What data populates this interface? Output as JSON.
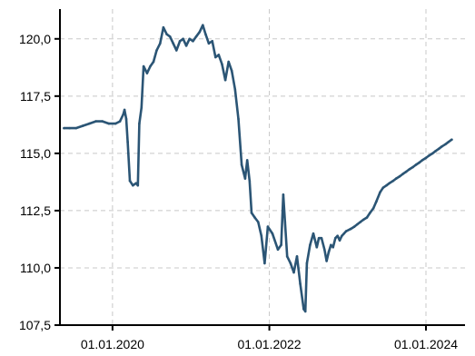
{
  "chart_data": {
    "type": "line",
    "title": "",
    "xlabel": "",
    "ylabel": "",
    "xlim": [
      "2019-05-01",
      "2024-07-01"
    ],
    "ylim": [
      107.5,
      121.3
    ],
    "y_ticks": [
      107.5,
      110.0,
      112.5,
      115.0,
      117.5,
      120.0
    ],
    "y_tick_labels": [
      "107,5",
      "110,0",
      "112,5",
      "115,0",
      "117,5",
      "120,0"
    ],
    "x_ticks": [
      "2020-01-01",
      "2022-01-01",
      "2024-01-01"
    ],
    "x_tick_labels": [
      "01.01.2020",
      "01.01.2022",
      "01.01.2024"
    ],
    "grid": true,
    "colors": {
      "series": "#2b5575",
      "grid": "#c8c8c8",
      "axis": "#000000"
    },
    "series": [
      {
        "color": "#2b5575",
        "x": [
          "2019-05-20",
          "2019-06-15",
          "2019-07-15",
          "2019-08-15",
          "2019-09-15",
          "2019-10-15",
          "2019-11-15",
          "2019-12-15",
          "2020-01-15",
          "2020-02-05",
          "2020-02-20",
          "2020-02-26",
          "2020-03-05",
          "2020-03-12",
          "2020-03-22",
          "2020-04-05",
          "2020-04-20",
          "2020-04-28",
          "2020-05-05",
          "2020-05-15",
          "2020-05-25",
          "2020-06-10",
          "2020-06-25",
          "2020-07-10",
          "2020-07-25",
          "2020-08-10",
          "2020-08-25",
          "2020-09-10",
          "2020-09-25",
          "2020-10-10",
          "2020-10-25",
          "2020-11-10",
          "2020-11-25",
          "2020-12-10",
          "2020-12-25",
          "2021-01-10",
          "2021-01-25",
          "2021-02-10",
          "2021-02-25",
          "2021-03-10",
          "2021-03-25",
          "2021-04-10",
          "2021-04-25",
          "2021-05-10",
          "2021-05-25",
          "2021-06-10",
          "2021-06-25",
          "2021-07-10",
          "2021-07-25",
          "2021-08-10",
          "2021-08-25",
          "2021-09-10",
          "2021-09-20",
          "2021-10-01",
          "2021-10-10",
          "2021-10-25",
          "2021-11-10",
          "2021-11-25",
          "2021-12-10",
          "2021-12-25",
          "2022-01-15",
          "2022-02-10",
          "2022-02-25",
          "2022-03-07",
          "2022-03-15",
          "2022-03-25",
          "2022-04-10",
          "2022-04-25",
          "2022-05-10",
          "2022-05-25",
          "2022-06-10",
          "2022-06-18",
          "2022-06-25",
          "2022-07-10",
          "2022-07-25",
          "2022-08-10",
          "2022-08-20",
          "2022-09-01",
          "2022-09-15",
          "2022-09-25",
          "2022-10-05",
          "2022-10-15",
          "2022-10-25",
          "2022-11-05",
          "2022-11-15",
          "2022-11-25",
          "2022-12-05",
          "2022-12-15",
          "2022-12-25",
          "2023-01-15",
          "2023-02-01",
          "2023-02-15",
          "2023-03-01",
          "2023-03-15",
          "2023-04-01",
          "2023-04-15",
          "2023-05-01",
          "2023-05-15",
          "2023-06-01",
          "2023-06-15",
          "2023-07-01",
          "2023-07-15",
          "2023-08-01",
          "2023-08-15",
          "2023-09-01",
          "2023-09-15",
          "2023-10-01",
          "2023-10-15",
          "2023-11-01",
          "2023-11-15",
          "2023-12-01",
          "2023-12-15",
          "2024-01-01",
          "2024-01-15",
          "2024-02-01",
          "2024-02-15",
          "2024-03-01",
          "2024-03-15",
          "2024-04-01",
          "2024-04-15",
          "2024-04-30"
        ],
        "y": [
          116.1,
          116.1,
          116.1,
          116.2,
          116.3,
          116.4,
          116.4,
          116.3,
          116.3,
          116.4,
          116.7,
          116.9,
          116.5,
          115.5,
          113.8,
          113.6,
          113.7,
          113.6,
          116.3,
          117.0,
          118.8,
          118.5,
          118.8,
          119.0,
          119.5,
          119.8,
          120.5,
          120.2,
          120.1,
          119.8,
          119.5,
          119.9,
          120.0,
          119.7,
          120.0,
          119.9,
          120.1,
          120.3,
          120.6,
          120.2,
          119.8,
          119.9,
          119.2,
          119.3,
          118.9,
          118.2,
          119.0,
          118.6,
          117.8,
          116.5,
          114.5,
          113.9,
          114.7,
          113.8,
          112.4,
          112.2,
          112.0,
          111.4,
          110.2,
          111.8,
          111.5,
          110.8,
          111.0,
          113.2,
          112.0,
          110.5,
          110.2,
          109.8,
          110.5,
          109.3,
          108.2,
          108.1,
          110.2,
          111.0,
          111.5,
          110.9,
          111.3,
          111.3,
          110.8,
          110.3,
          110.7,
          111.0,
          110.9,
          111.3,
          111.4,
          111.2,
          111.4,
          111.5,
          111.6,
          111.7,
          111.8,
          111.9,
          112.0,
          112.1,
          112.2,
          112.4,
          112.6,
          112.9,
          113.3,
          113.5,
          113.6,
          113.7,
          113.8,
          113.9,
          114.0,
          114.1,
          114.2,
          114.3,
          114.4,
          114.5,
          114.6,
          114.7,
          114.8,
          114.9,
          115.0,
          115.1,
          115.2,
          115.3,
          115.4,
          115.5,
          115.6
        ]
      }
    ]
  }
}
